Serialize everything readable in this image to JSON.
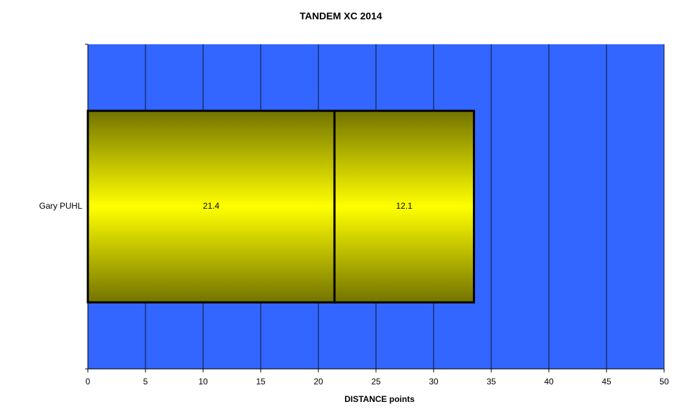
{
  "chart_data": {
    "type": "bar",
    "orientation": "horizontal",
    "stacked": true,
    "title": "TANDEM XC 2014",
    "xlabel": "DISTANCE points",
    "categories": [
      "Gary PUHL"
    ],
    "series": [
      {
        "color": "#ffff00",
        "values": [
          21.4
        ]
      },
      {
        "color": "#ffff00",
        "values": [
          12.1
        ]
      }
    ],
    "xlim": [
      0,
      50
    ],
    "xticks": [
      0,
      5,
      10,
      15,
      20,
      25,
      30,
      35,
      40,
      45,
      50
    ],
    "grid": true,
    "background": "#3366ff"
  }
}
